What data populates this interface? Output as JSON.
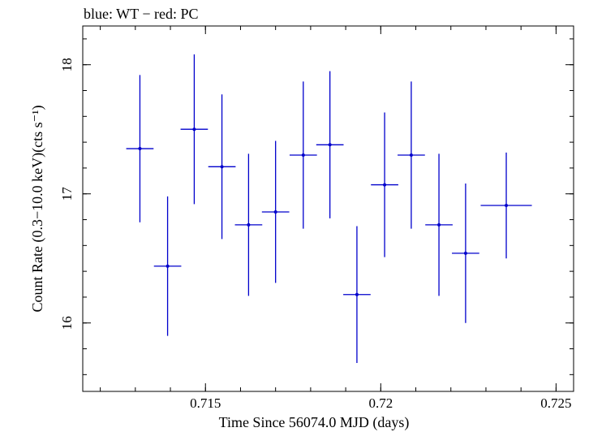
{
  "chart_data": {
    "type": "scatter",
    "title": "blue: WT − red: PC",
    "xlabel": "Time Since 56074.0 MJD (days)",
    "ylabel": "Count Rate (0.3−10.0 keV)(cts s⁻¹)",
    "xlim": [
      0.7115,
      0.7255
    ],
    "ylim": [
      15.47,
      18.3
    ],
    "x_ticks": [
      {
        "value": 0.715,
        "label": "0.715"
      },
      {
        "value": 0.72,
        "label": "0.72"
      },
      {
        "value": 0.725,
        "label": "0.725"
      }
    ],
    "y_ticks": [
      {
        "value": 16,
        "label": "16"
      },
      {
        "value": 17,
        "label": "17"
      },
      {
        "value": 18,
        "label": "18"
      }
    ],
    "x_minor_step": 0.001,
    "y_minor_step": 0.2,
    "grid": false,
    "series": [
      {
        "color": "#0000cc",
        "points": [
          {
            "x": 0.71313,
            "xerr": 0.00039,
            "y": 17.35,
            "yerr": 0.57
          },
          {
            "x": 0.71392,
            "xerr": 0.00039,
            "y": 16.44,
            "yerr": 0.54
          },
          {
            "x": 0.71468,
            "xerr": 0.00039,
            "y": 17.5,
            "yerr": 0.58
          },
          {
            "x": 0.71547,
            "xerr": 0.00039,
            "y": 17.21,
            "yerr": 0.56
          },
          {
            "x": 0.71623,
            "xerr": 0.00039,
            "y": 16.76,
            "yerr": 0.55
          },
          {
            "x": 0.717,
            "xerr": 0.00039,
            "y": 16.86,
            "yerr": 0.55
          },
          {
            "x": 0.71779,
            "xerr": 0.00039,
            "y": 17.3,
            "yerr": 0.57
          },
          {
            "x": 0.71855,
            "xerr": 0.00039,
            "y": 17.38,
            "yerr": 0.57
          },
          {
            "x": 0.71932,
            "xerr": 0.00039,
            "y": 16.22,
            "yerr": 0.53
          },
          {
            "x": 0.72011,
            "xerr": 0.00039,
            "y": 17.07,
            "yerr": 0.56
          },
          {
            "x": 0.72087,
            "xerr": 0.00039,
            "y": 17.3,
            "yerr": 0.57
          },
          {
            "x": 0.72166,
            "xerr": 0.00039,
            "y": 16.76,
            "yerr": 0.55
          },
          {
            "x": 0.72242,
            "xerr": 0.00039,
            "y": 16.54,
            "yerr": 0.54
          },
          {
            "x": 0.72358,
            "xerr": 0.00073,
            "y": 16.91,
            "yerr": 0.41
          }
        ]
      }
    ]
  }
}
